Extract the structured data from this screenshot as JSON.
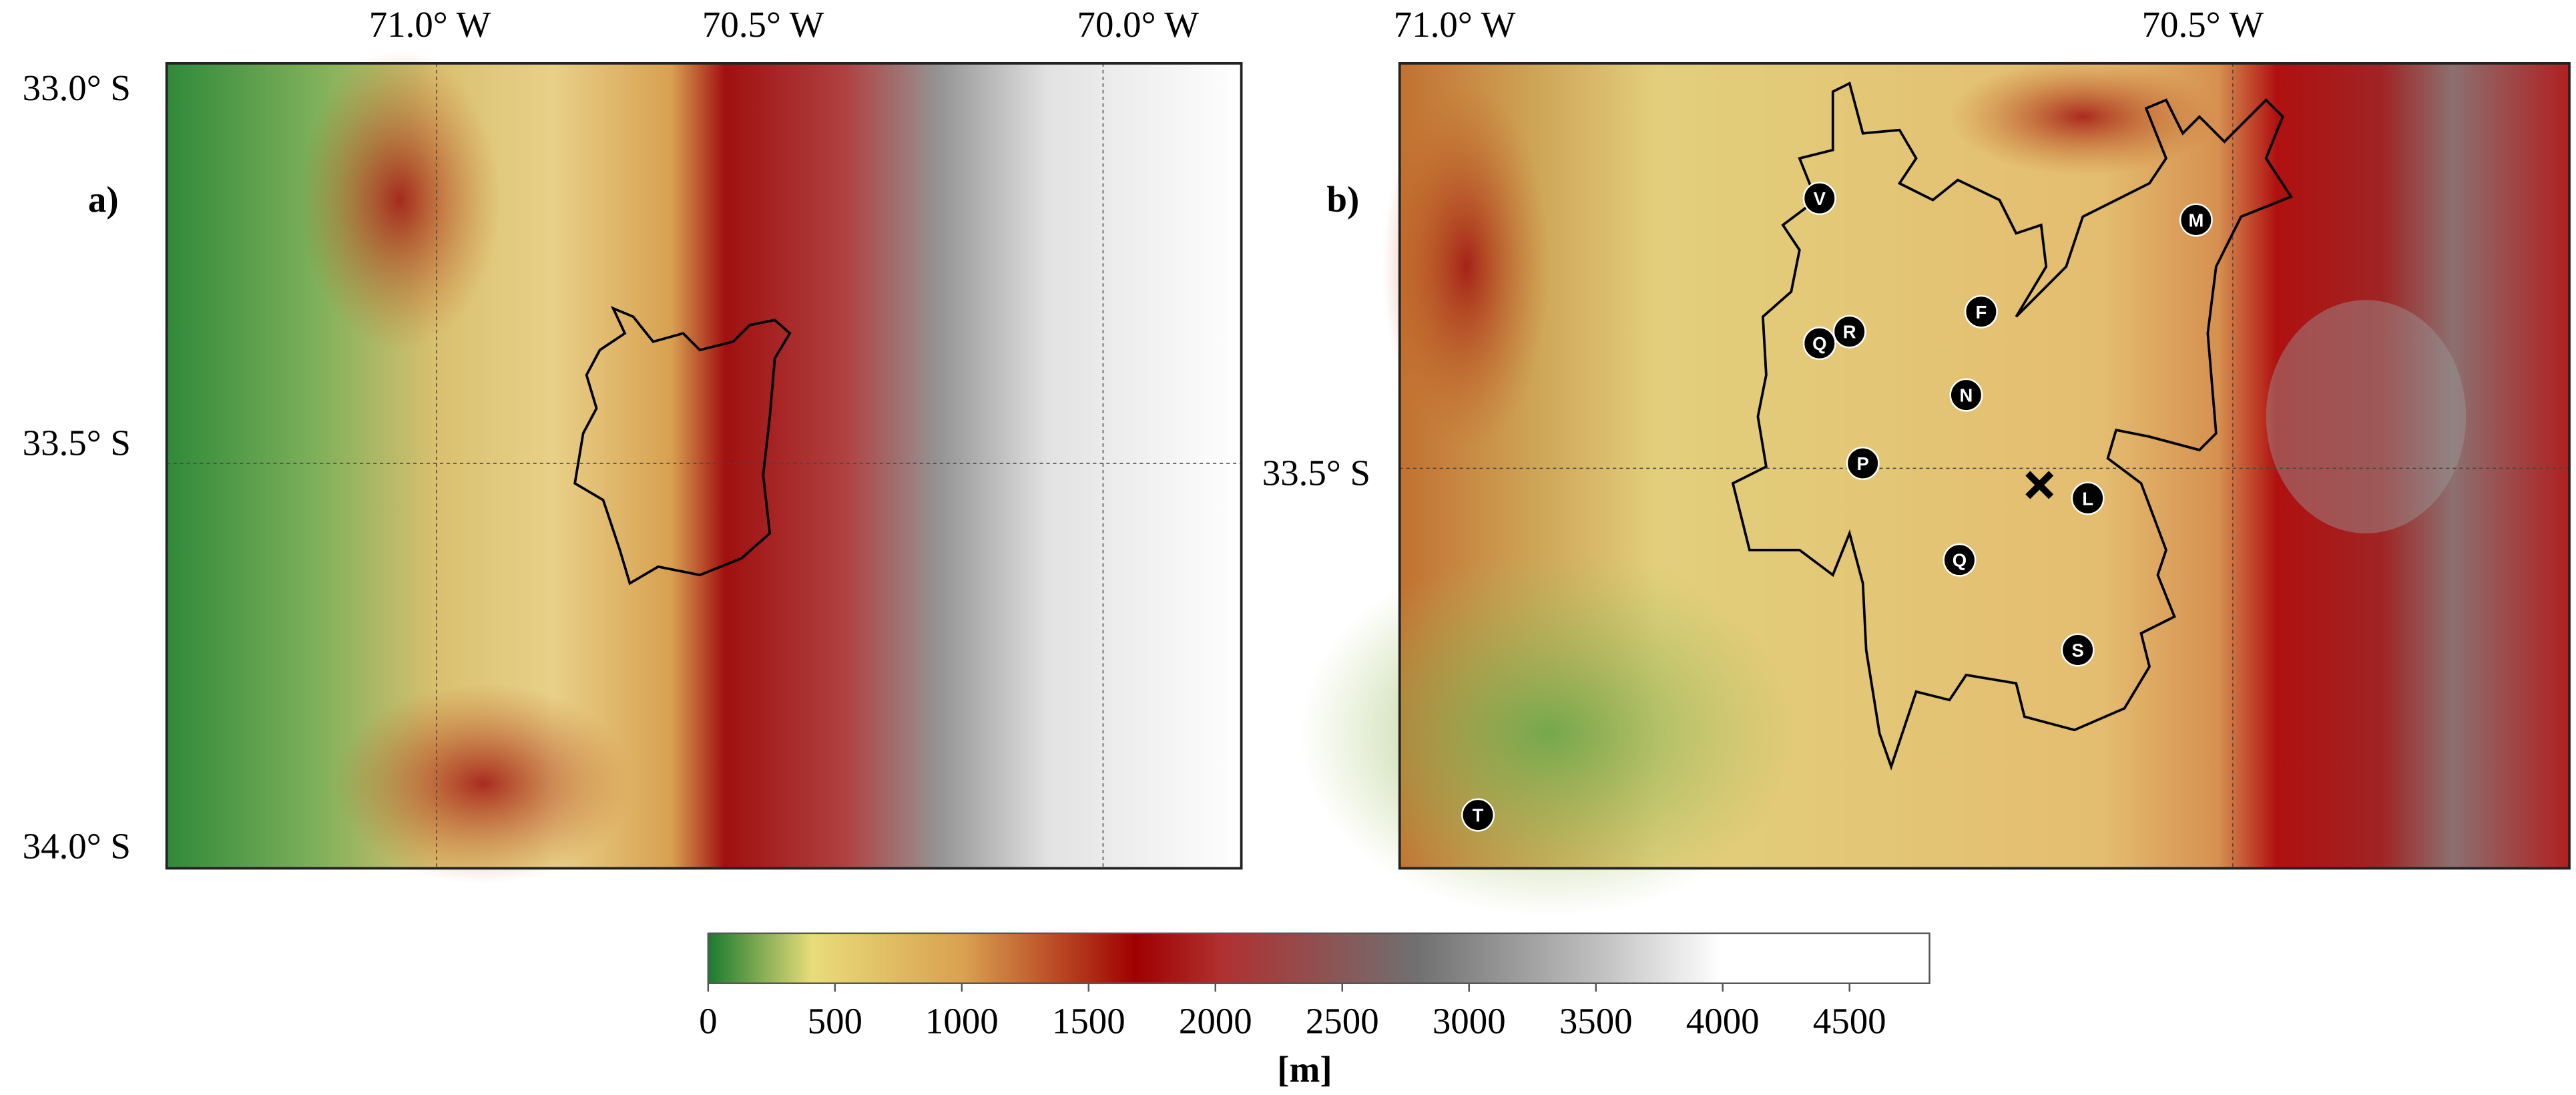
{
  "panels": [
    {
      "label": "a)",
      "lon_labels": [
        "71.0° W",
        "70.5° W",
        "70.0° W"
      ],
      "lat_labels": [
        "33.0° S",
        "33.5° S",
        "34.0° S"
      ]
    },
    {
      "label": "b)",
      "lon_labels": [
        "71.0° W",
        "70.5° W"
      ],
      "lat_labels": [
        "33.5° S"
      ],
      "stations": [
        "V",
        "M",
        "F",
        "R",
        "Q",
        "N",
        "P",
        "L",
        "Q",
        "S",
        "T"
      ]
    }
  ],
  "colorbar": {
    "ticks": [
      0,
      500,
      1000,
      1500,
      2000,
      2500,
      3000,
      3500,
      4000,
      4500
    ],
    "label": "[m]"
  }
}
